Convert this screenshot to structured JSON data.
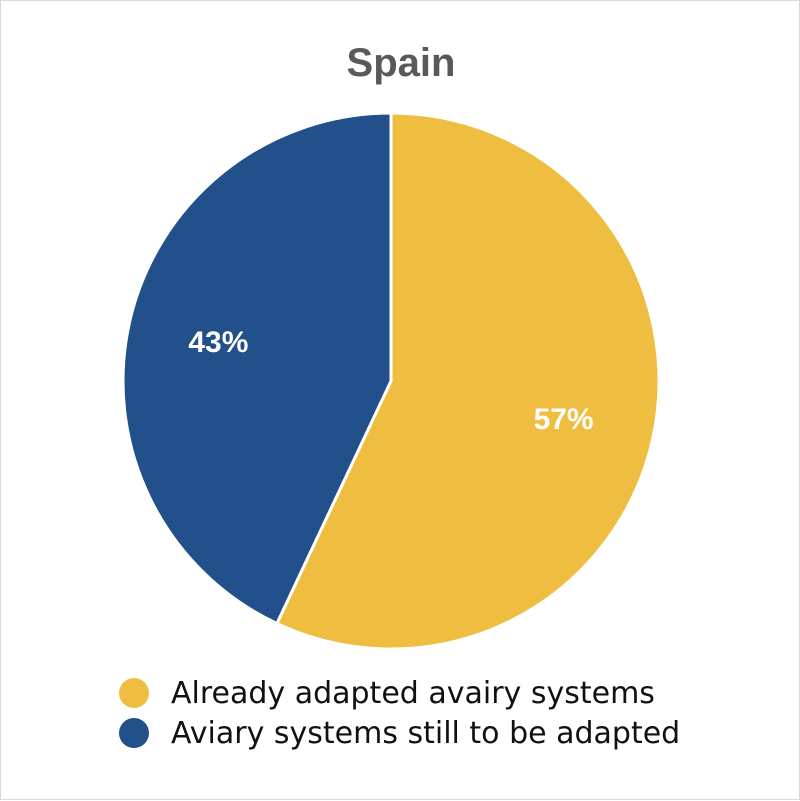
{
  "chart_data": {
    "type": "pie",
    "title": "Spain",
    "slices": [
      {
        "label": "Already adapted avairy systems",
        "value": 57,
        "display": "57%",
        "color": "#EFBE41"
      },
      {
        "label": "Aviary systems still to be adapted",
        "value": 43,
        "display": "43%",
        "color": "#21508A"
      }
    ],
    "legend_position": "bottom",
    "label_color": "#FFFFFF"
  }
}
